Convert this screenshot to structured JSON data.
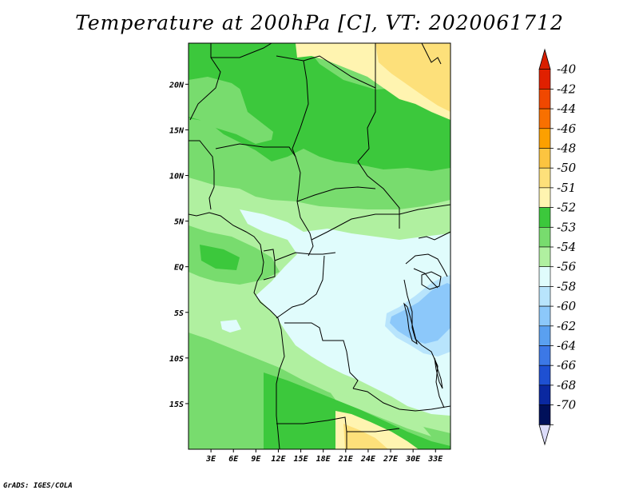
{
  "title": "Temperature at 200hPa [C], VT: 2020061712",
  "credit": "GrADS: IGES/COLA",
  "map": {
    "lon_range": [
      0,
      35
    ],
    "lat_range": [
      -20,
      24.5
    ],
    "lat_ticks": [
      {
        "value": 20,
        "label": "20N"
      },
      {
        "value": 15,
        "label": "15N"
      },
      {
        "value": 10,
        "label": "10N"
      },
      {
        "value": 5,
        "label": "5N"
      },
      {
        "value": 0,
        "label": "EQ"
      },
      {
        "value": -5,
        "label": "5S"
      },
      {
        "value": -10,
        "label": "10S"
      },
      {
        "value": -15,
        "label": "15S"
      }
    ],
    "lon_ticks": [
      {
        "value": 3,
        "label": "3E"
      },
      {
        "value": 6,
        "label": "6E"
      },
      {
        "value": 9,
        "label": "9E"
      },
      {
        "value": 12,
        "label": "12E"
      },
      {
        "value": 15,
        "label": "15E"
      },
      {
        "value": 18,
        "label": "18E"
      },
      {
        "value": 21,
        "label": "21E"
      },
      {
        "value": 24,
        "label": "24E"
      },
      {
        "value": 27,
        "label": "27E"
      },
      {
        "value": 30,
        "label": "30E"
      },
      {
        "value": 33,
        "label": "33E"
      }
    ]
  },
  "colorbar": {
    "levels": [
      {
        "label": "-40",
        "color": "#e02000"
      },
      {
        "label": "-42",
        "color": "#f04800"
      },
      {
        "label": "-44",
        "color": "#f87000"
      },
      {
        "label": "-46",
        "color": "#fca000"
      },
      {
        "label": "-48",
        "color": "#fcc440"
      },
      {
        "label": "-50",
        "color": "#fde07a"
      },
      {
        "label": "-51",
        "color": "#fff4b0"
      },
      {
        "label": "-52",
        "color": "#3cc83c"
      },
      {
        "label": "-53",
        "color": "#78dc6e"
      },
      {
        "label": "-54",
        "color": "#b0f0a0"
      },
      {
        "label": "-56",
        "color": "#e0fcfc"
      },
      {
        "label": "-58",
        "color": "#b8e4fc"
      },
      {
        "label": "-60",
        "color": "#8cc8fa"
      },
      {
        "label": "-62",
        "color": "#5aa0f0"
      },
      {
        "label": "-64",
        "color": "#3c78e6"
      },
      {
        "label": "-66",
        "color": "#1e50d2"
      },
      {
        "label": "-68",
        "color": "#0a28a0"
      },
      {
        "label": "-70",
        "color": "#00105a"
      }
    ],
    "top_color": "#d81e00",
    "bottom_color": "#dcdcfa"
  },
  "palette": {
    "band_52": "#3cc83c",
    "band_53": "#78dc6e",
    "band_54": "#b0f0a0",
    "band_56": "#e0fcfc",
    "band_58": "#b8e4fc",
    "band_60": "#8cc8fa",
    "band_51": "#fff4b0",
    "band_50": "#fde07a"
  }
}
